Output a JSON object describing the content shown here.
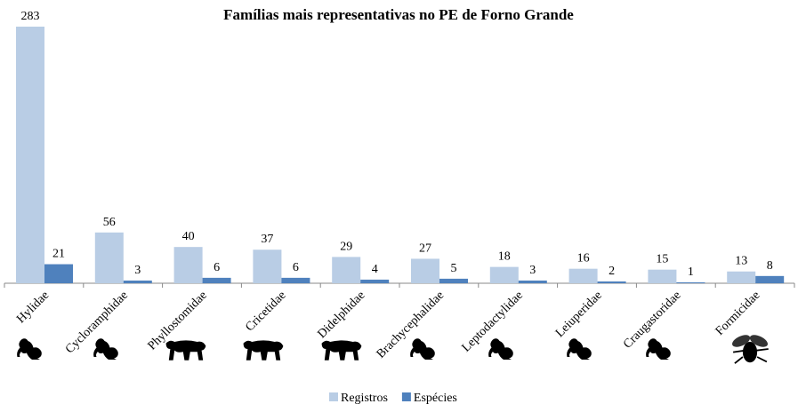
{
  "chart_data": {
    "type": "bar",
    "title": "Famílias mais representativas no PE de Forno Grande",
    "categories": [
      "Hylidae",
      "Cycloramphidae",
      "Phyllostomidae",
      "Cricetidae",
      "Didelphidae",
      "Brachycephalidae",
      "Leptodactylidae",
      "Leiuperidae",
      "Craugastoridae",
      "Formicidae"
    ],
    "series": [
      {
        "name": "Registros",
        "color": "#b9cde5",
        "values": [
          283,
          56,
          40,
          37,
          29,
          27,
          18,
          16,
          15,
          13
        ]
      },
      {
        "name": "Espécies",
        "color": "#4f81bd",
        "values": [
          21,
          3,
          6,
          6,
          4,
          5,
          3,
          2,
          1,
          8
        ]
      }
    ],
    "legend": "bottom"
  }
}
